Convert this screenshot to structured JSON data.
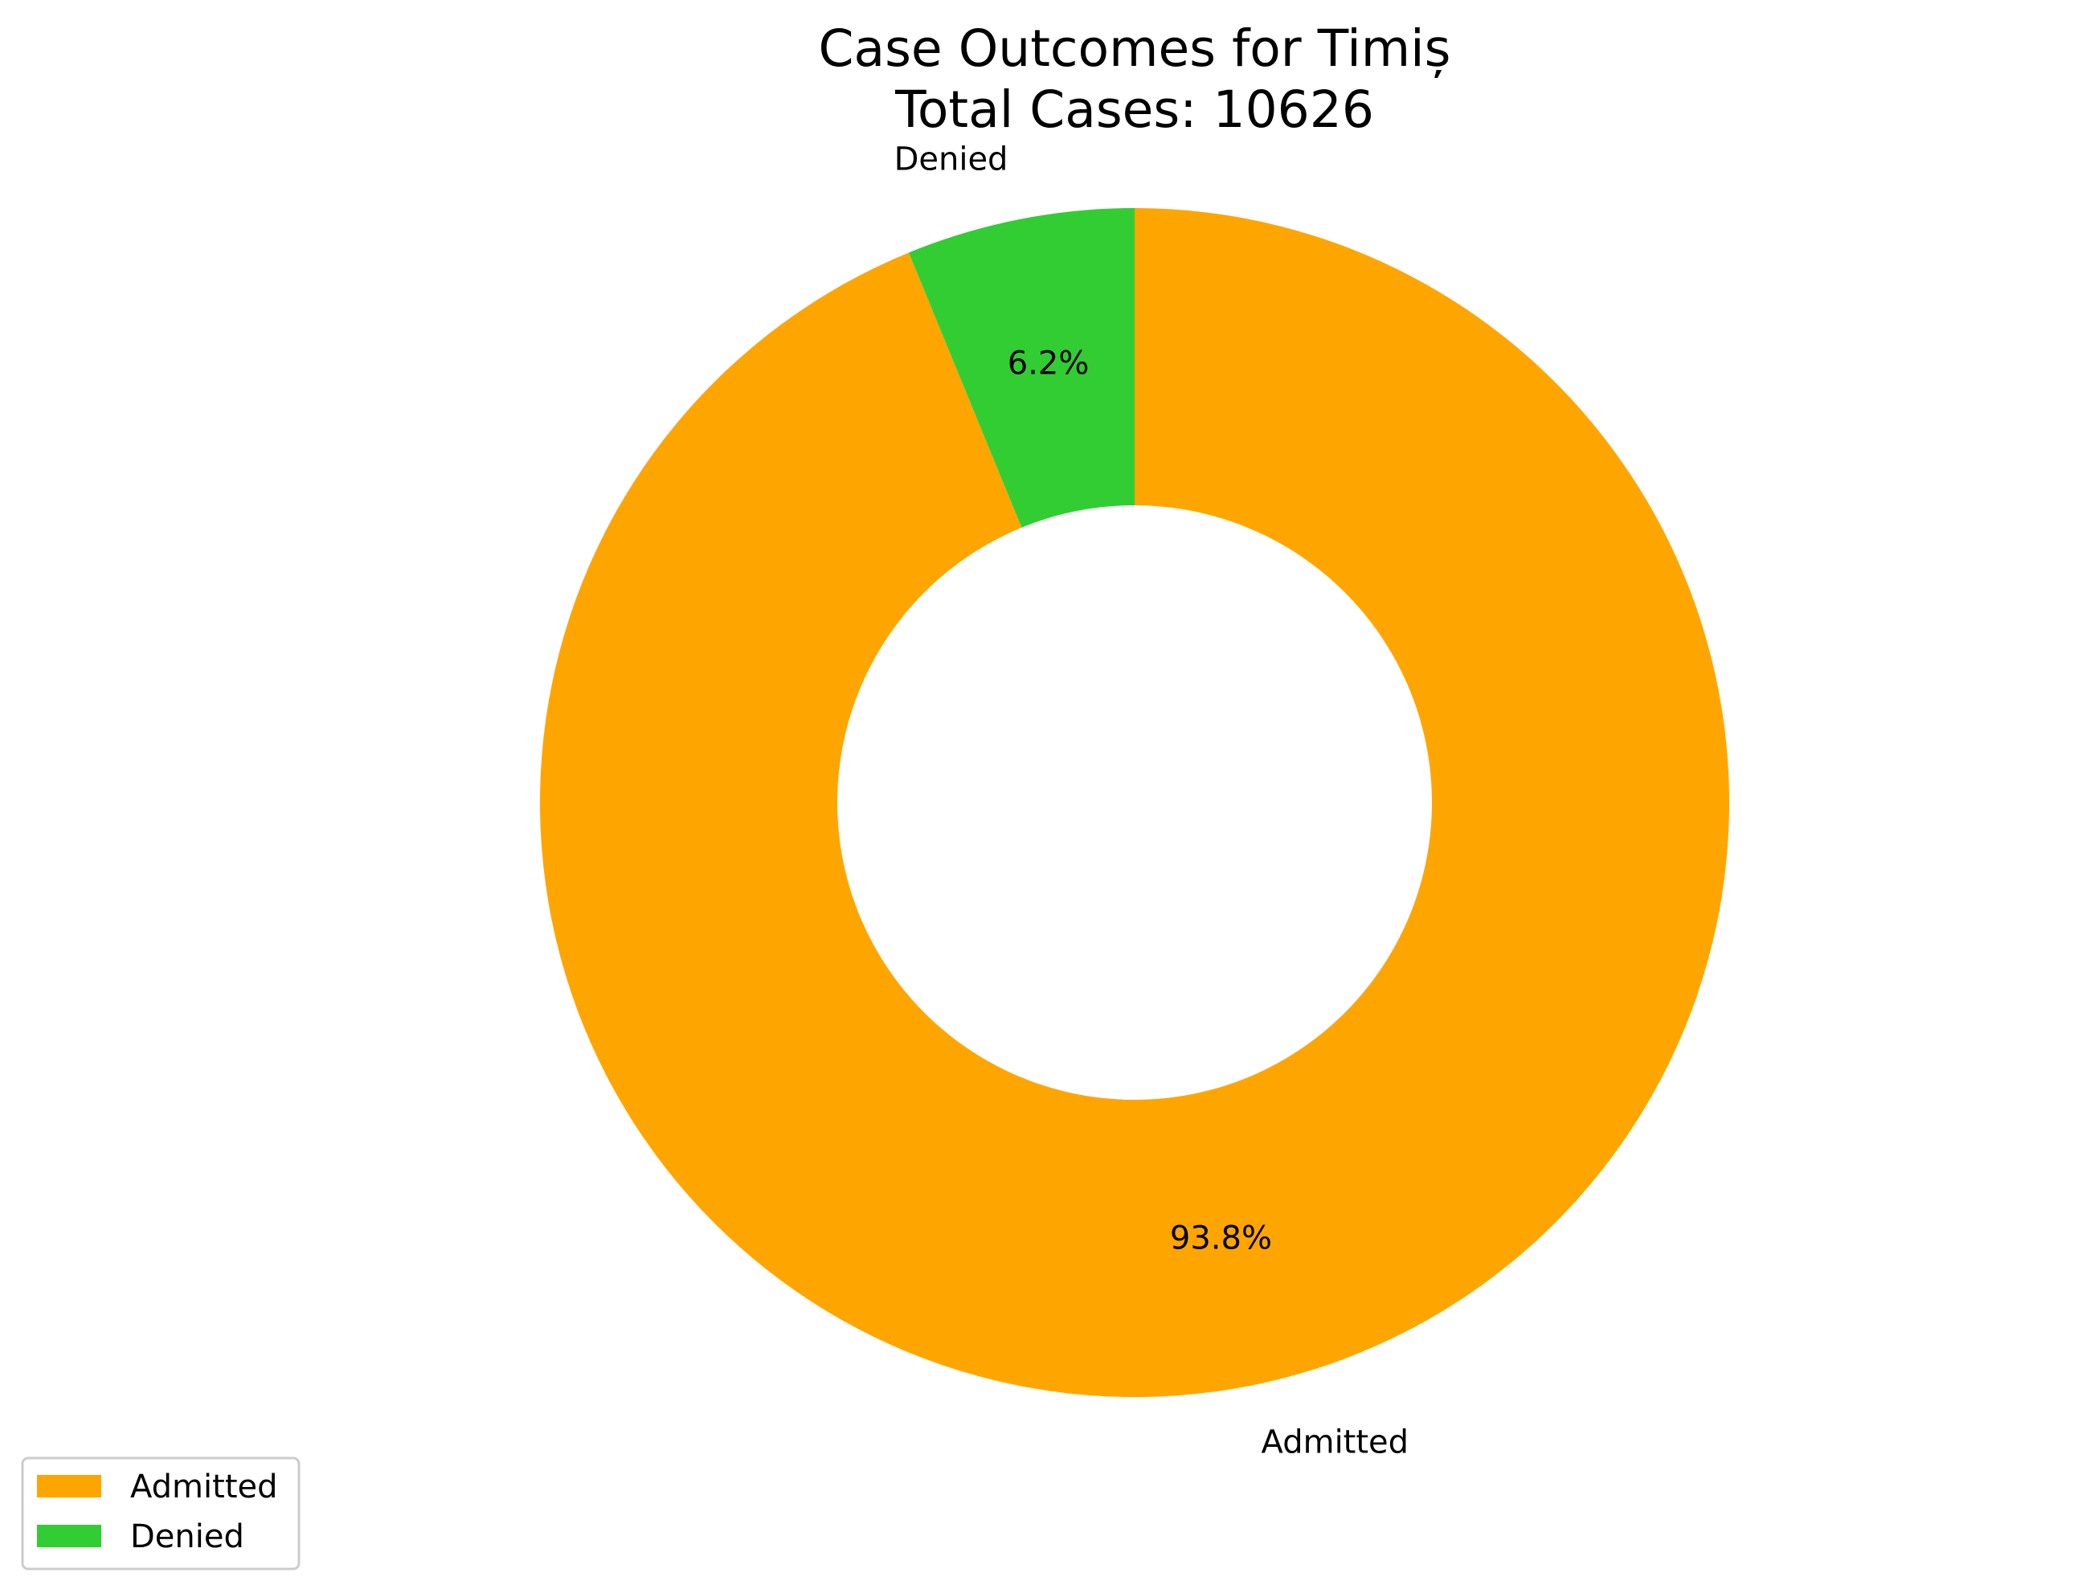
{
  "chart_data": {
    "type": "pie",
    "style": "donut",
    "title": "Case Outcomes for Timiș",
    "subtitle": "Total Cases: 10626",
    "start_angle_deg": 90,
    "direction": "clockwise",
    "slices": [
      {
        "label": "Admitted",
        "value": 93.8,
        "pct_label": "93.8%",
        "color": "#FFA500"
      },
      {
        "label": "Denied",
        "value": 6.2,
        "pct_label": "6.2%",
        "color": "#32CD32"
      }
    ],
    "legend": {
      "placement": "lower-left",
      "entries": [
        "Admitted",
        "Denied"
      ]
    }
  }
}
